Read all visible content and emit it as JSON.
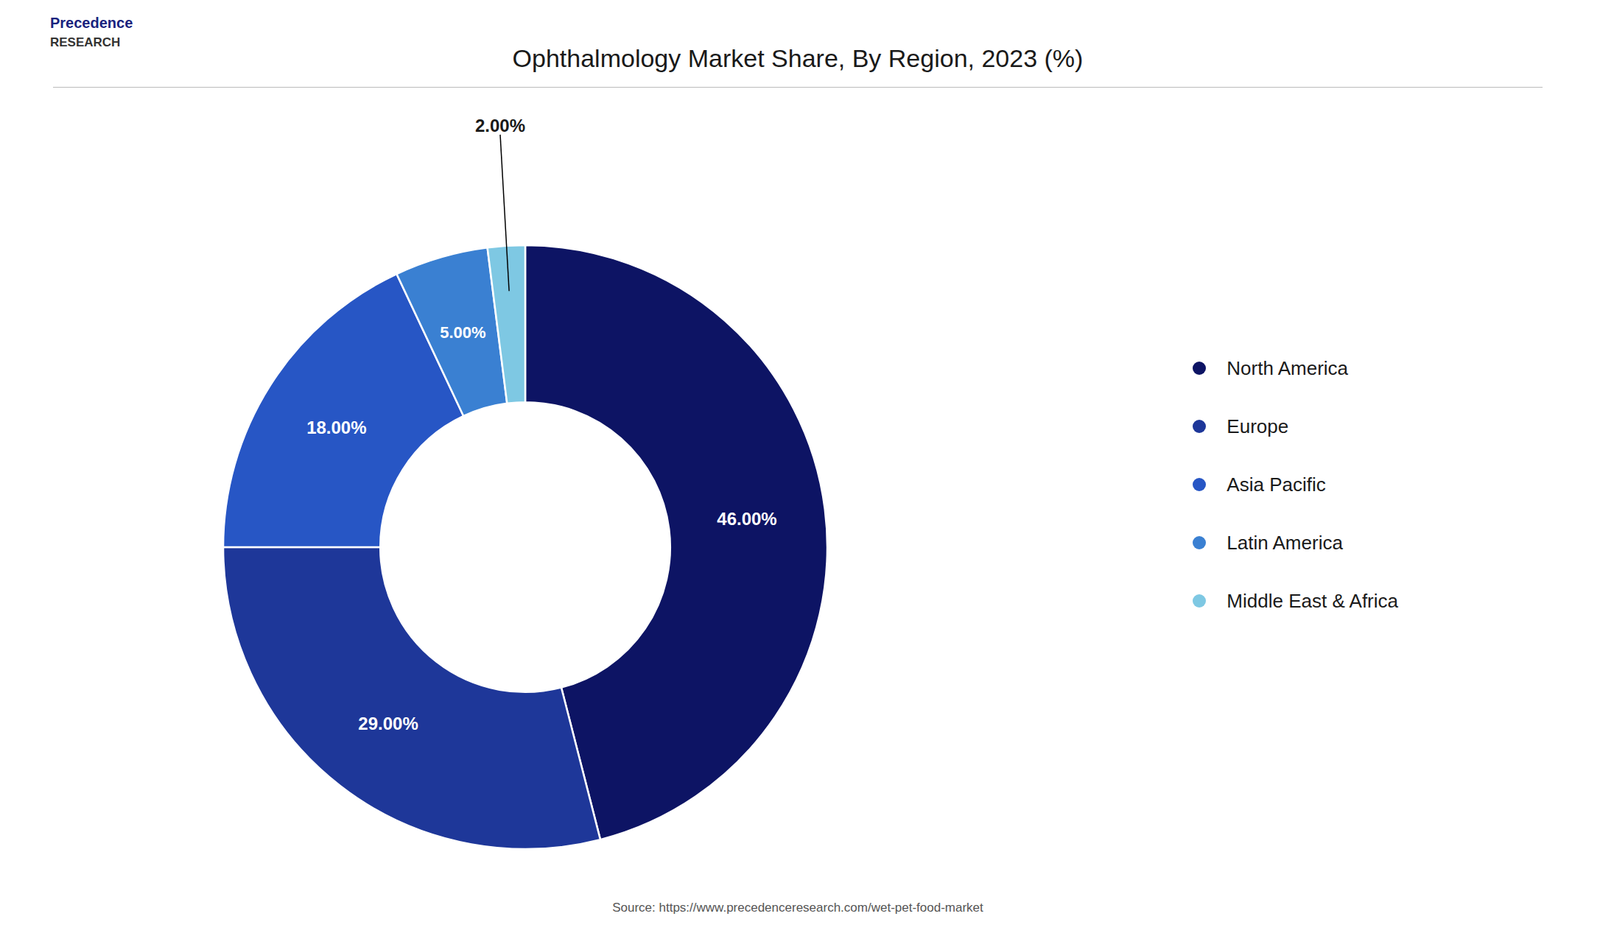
{
  "chart_data": {
    "type": "donut",
    "title": "Ophthalmology Market Share, By Region, 2023 (%)",
    "categories": [
      "North America",
      "Europe",
      "Asia Pacific",
      "Latin America",
      "Middle East & Africa"
    ],
    "values": [
      46.0,
      29.0,
      18.0,
      5.0,
      2.0
    ],
    "value_labels": [
      "46.00%",
      "29.00%",
      "18.00%",
      "5.00%",
      "2.00%"
    ],
    "colors": [
      "#0d1464",
      "#1e3799",
      "#2756c5",
      "#3a80d2",
      "#7ec8e3"
    ],
    "data_labels": true,
    "legend": "right",
    "annotations": [
      "Precedence",
      "RESEARCH",
      "Source: https://www.precedenceresearch.com/wet-pet-food-market"
    ]
  }
}
